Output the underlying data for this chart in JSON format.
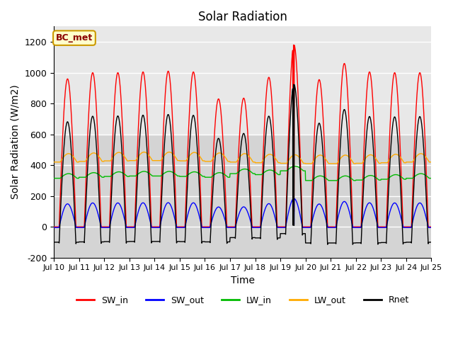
{
  "title": "Solar Radiation",
  "xlabel": "Time",
  "ylabel": "Solar Radiation (W/m2)",
  "ylim": [
    -200,
    1300
  ],
  "xtick_labels": [
    "Jul 10",
    "Jul 11",
    "Jul 12",
    "Jul 13",
    "Jul 14",
    "Jul 15",
    "Jul 16",
    "Jul 17",
    "Jul 18",
    "Jul 19",
    "Jul 20",
    "Jul 21",
    "Jul 22",
    "Jul 23",
    "Jul 24",
    "Jul 25"
  ],
  "ytick_labels": [
    "-200",
    "0",
    "200",
    "400",
    "600",
    "800",
    "1000",
    "1200"
  ],
  "ytick_values": [
    -200,
    0,
    200,
    400,
    600,
    800,
    1000,
    1200
  ],
  "legend_labels": [
    "SW_in",
    "SW_out",
    "LW_in",
    "LW_out",
    "Rnet"
  ],
  "legend_colors": [
    "#ff0000",
    "#0000ff",
    "#00bb00",
    "#ffaa00",
    "#000000"
  ],
  "annotation_text": "BC_met",
  "annotation_color": "#8b0000",
  "annotation_bg": "#ffffcc",
  "bg_color_upper": "#d8d8d8",
  "bg_color_lower": "#e8e8e8",
  "grid_color": "#ffffff",
  "n_days": 15,
  "dt_hours": 0.25
}
